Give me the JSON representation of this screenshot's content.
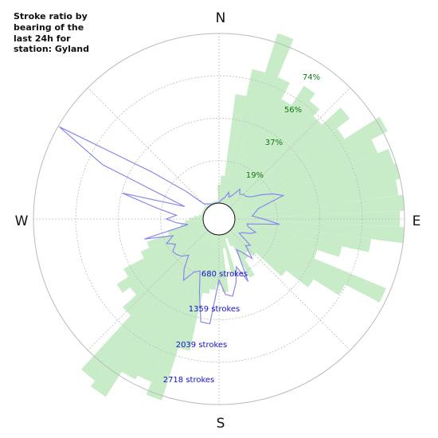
{
  "chart_data": {
    "type": "polar",
    "title_lines": [
      "Stroke ratio by",
      "bearing of the",
      "last 24h for",
      "station: Gyland"
    ],
    "directions": [
      "N",
      "E",
      "S",
      "W"
    ],
    "ratio_ticks": [
      {
        "label": "19%",
        "value": 19
      },
      {
        "label": "37%",
        "value": 37
      },
      {
        "label": "56%",
        "value": 56
      },
      {
        "label": "74%",
        "value": 74
      }
    ],
    "count_ticks": [
      {
        "label": "680 strokes",
        "value": 680
      },
      {
        "label": "1359 strokes",
        "value": 1359
      },
      {
        "label": "2039 strokes",
        "value": 2039
      },
      {
        "label": "2718 strokes",
        "value": 2718
      }
    ],
    "grid": true,
    "sector_width_deg": 5,
    "ratio_series": {
      "unit": "percent",
      "color": "#c8ecc8",
      "bearings_deg": [
        0,
        5,
        10,
        15,
        20,
        25,
        30,
        35,
        40,
        45,
        50,
        55,
        60,
        65,
        70,
        75,
        80,
        85,
        90,
        95,
        100,
        105,
        110,
        115,
        120,
        125,
        130,
        135,
        140,
        145,
        150,
        155,
        160,
        165,
        170,
        175,
        180,
        185,
        190,
        195,
        200,
        205,
        210,
        215,
        220,
        225,
        230,
        235,
        240,
        245,
        250,
        255,
        260,
        265,
        270,
        275,
        280,
        285,
        290,
        295,
        300,
        305,
        310,
        315,
        320,
        325,
        330,
        335,
        340,
        345,
        350,
        355
      ],
      "values": [
        8,
        12,
        48,
        60,
        78,
        60,
        52,
        62,
        58,
        54,
        65,
        58,
        76,
        68,
        73,
        74,
        72,
        74,
        72,
        74,
        60,
        48,
        38,
        72,
        55,
        42,
        30,
        15,
        12,
        14,
        22,
        6,
        2,
        18,
        6,
        25,
        22,
        24,
        26,
        52,
        76,
        70,
        72,
        85,
        82,
        50,
        42,
        46,
        40,
        30,
        26,
        16,
        10,
        8,
        6,
        4,
        2,
        1,
        1,
        1,
        1,
        1,
        1,
        1,
        1,
        1,
        1,
        1,
        1,
        1,
        1,
        1
      ]
    },
    "count_series": {
      "unit": "strokes",
      "color": "#8888ee",
      "bearings_deg": [
        0,
        5,
        10,
        15,
        20,
        25,
        30,
        35,
        40,
        45,
        50,
        55,
        60,
        65,
        70,
        75,
        80,
        85,
        90,
        95,
        100,
        105,
        110,
        115,
        120,
        125,
        130,
        135,
        140,
        145,
        150,
        155,
        160,
        165,
        170,
        175,
        180,
        185,
        190,
        195,
        200,
        205,
        210,
        215,
        220,
        225,
        230,
        235,
        240,
        245,
        250,
        255,
        260,
        265,
        270,
        275,
        280,
        285,
        290,
        295,
        300,
        305,
        310,
        315,
        320,
        325,
        330,
        335,
        340,
        345,
        350,
        355
      ],
      "values": [
        10,
        40,
        70,
        100,
        200,
        130,
        190,
        330,
        260,
        300,
        310,
        360,
        520,
        700,
        840,
        400,
        330,
        280,
        460,
        720,
        200,
        230,
        370,
        290,
        180,
        140,
        400,
        350,
        570,
        400,
        310,
        850,
        560,
        800,
        1000,
        960,
        720,
        1430,
        1420,
        960,
        630,
        680,
        880,
        720,
        500,
        590,
        630,
        650,
        550,
        670,
        530,
        980,
        250,
        430,
        590,
        430,
        760,
        1350,
        330,
        1800,
        2700,
        1060,
        430,
        90,
        60,
        40,
        20,
        10,
        5,
        5,
        5,
        5
      ]
    }
  }
}
